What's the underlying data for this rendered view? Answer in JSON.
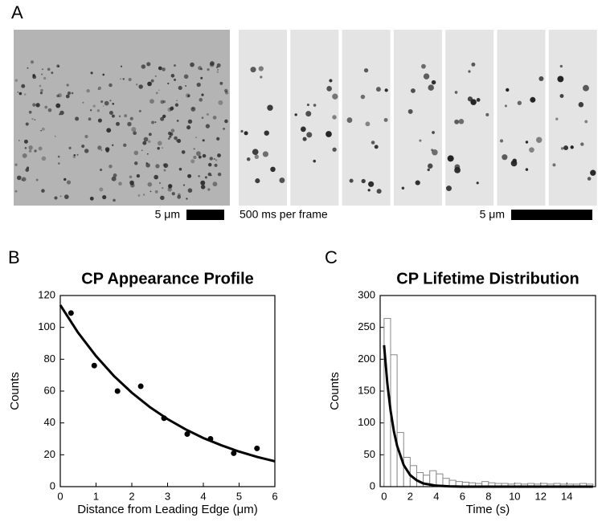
{
  "panel_labels": [
    "A",
    "B",
    "C"
  ],
  "image_annotations": {
    "scale_left": "5 μm",
    "frame_rate": "500 ms per frame",
    "scale_right": "5 μm"
  },
  "chart_data": [
    {
      "type": "scatter",
      "title": "CP Appearance Profile",
      "x_label": "Distance from Leading Edge (μm)",
      "y_label": "Counts",
      "x": [
        0.3,
        0.95,
        1.6,
        2.25,
        2.9,
        3.55,
        4.2,
        4.85,
        5.5
      ],
      "values": [
        109,
        76,
        60,
        63,
        43,
        33,
        30,
        21,
        24
      ],
      "color": "#000000",
      "fit": {
        "x": [
          0,
          0.5,
          1,
          1.5,
          2,
          2.5,
          3,
          3.5,
          4,
          4.5,
          5,
          5.5,
          6
        ],
        "values": [
          114,
          96.6,
          82,
          69.5,
          59,
          50,
          42.4,
          36,
          30.5,
          26,
          22,
          18.7,
          15.9
        ]
      },
      "xlim": [
        0,
        6
      ],
      "ylim": [
        0,
        120
      ],
      "xticks": [
        0,
        1,
        2,
        3,
        4,
        5,
        6
      ],
      "yticks": [
        0,
        20,
        40,
        60,
        80,
        100,
        120
      ]
    },
    {
      "type": "histogram",
      "title": "CP Lifetime Distribution",
      "x_label": "Time (s)",
      "y_label": "Counts",
      "bins": [
        0,
        0.5,
        1,
        1.5,
        2,
        2.5,
        3,
        3.5,
        4,
        4.5,
        5,
        5.5,
        6,
        6.5,
        7,
        7.5,
        8,
        8.5,
        9,
        9.5,
        10,
        10.5,
        11,
        11.5,
        12,
        12.5,
        13,
        13.5,
        14,
        14.5,
        15,
        15.5,
        16
      ],
      "values": [
        264,
        207,
        85,
        46,
        33,
        22,
        18,
        25,
        20,
        13,
        10,
        8,
        7,
        6,
        5,
        8,
        6,
        5,
        5,
        4,
        5,
        4,
        5,
        4,
        5,
        4,
        5,
        4,
        4,
        4,
        5,
        4
      ],
      "color": "#888888",
      "fit": {
        "x": [
          0,
          0.25,
          0.5,
          0.75,
          1,
          1.5,
          2,
          2.5,
          3,
          4,
          5,
          6,
          8,
          10,
          12,
          14,
          16
        ],
        "values": [
          222,
          162,
          119,
          87,
          64,
          34,
          18,
          10,
          5,
          1.5,
          0.4,
          0,
          0,
          0,
          0,
          0,
          0
        ]
      },
      "xlim": [
        -0.3,
        16.2
      ],
      "ylim": [
        0,
        300
      ],
      "xticks": [
        0,
        2,
        4,
        6,
        8,
        10,
        12,
        14
      ],
      "yticks": [
        0,
        50,
        100,
        150,
        200,
        250,
        300
      ]
    }
  ]
}
